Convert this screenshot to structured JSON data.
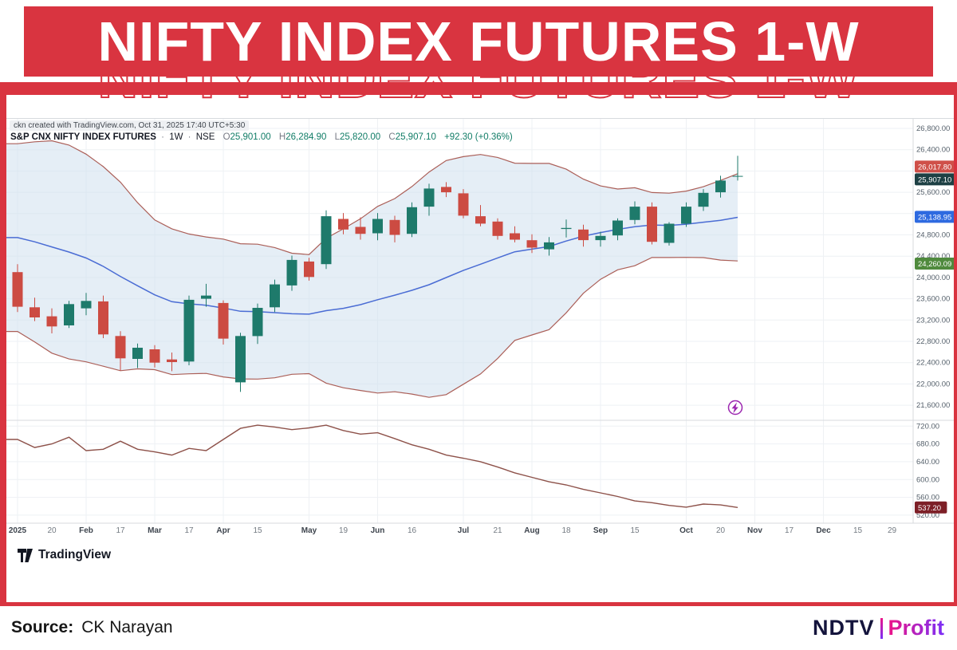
{
  "banner": {
    "title": "NIFTY INDEX FUTURES 1-W",
    "bg_color": "#d93440"
  },
  "chart_header": {
    "watermark": "ckn created with TradingView.com, Oct 31, 2025 17:40 UTC+5:30",
    "symbol": "S&P CNX NIFTY INDEX FUTURES",
    "separator": "·",
    "interval": "1W",
    "exchange": "NSE",
    "ohlc": [
      {
        "k": "O",
        "v": "25,901.00"
      },
      {
        "k": "H",
        "v": "26,284.90"
      },
      {
        "k": "L",
        "v": "25,820.00"
      },
      {
        "k": "C",
        "v": "25,907.10"
      }
    ],
    "change": "+92.30 (+0.36%)"
  },
  "logo": {
    "text": "TradingView"
  },
  "footer": {
    "source_label": "Source:",
    "source_name": "CK Narayan",
    "brand_ndtv": "NDTV",
    "brand_profit": "Profit"
  },
  "chart_data": {
    "type": "candlestick",
    "title": "S&P CNX NIFTY INDEX FUTURES · 1W · NSE — weekly candles with Bollinger Bands (20,2) and lower volatility indicator",
    "colors": {
      "up": "#1e7a6b",
      "down": "#cc4b42",
      "bb_fill": "#cfe0ef",
      "bb_line": "#ab5f58",
      "basis": "#4a6cd4",
      "indicator": "#8d5149"
    },
    "y_axis_main": {
      "ylim": [
        21257,
        26980
      ],
      "ticks": [
        {
          "p": 26800,
          "l": "26,800.00"
        },
        {
          "p": 26400,
          "l": "26,400.00"
        },
        {
          "p": 26000,
          "l": ""
        },
        {
          "p": 25600,
          "l": "25,600.00"
        },
        {
          "p": 25200,
          "l": ""
        },
        {
          "p": 24800,
          "l": "24,800.00"
        },
        {
          "p": 24400,
          "l": "24,400.00"
        },
        {
          "p": 24000,
          "l": "24,000.00"
        },
        {
          "p": 23600,
          "l": "23,600.00"
        },
        {
          "p": 23200,
          "l": "23,200.00"
        },
        {
          "p": 22800,
          "l": "22,800.00"
        },
        {
          "p": 22400,
          "l": "22,400.00"
        },
        {
          "p": 22000,
          "l": "22,000.00"
        },
        {
          "p": 21600,
          "l": "21,600.00"
        }
      ]
    },
    "y_axis_lower": {
      "ylim": [
        502,
        733
      ],
      "ticks": [
        {
          "v": 720,
          "l": "720.00"
        },
        {
          "v": 680,
          "l": "680.00"
        },
        {
          "v": 640,
          "l": "640.00"
        },
        {
          "v": 600,
          "l": "600.00"
        },
        {
          "v": 560,
          "l": "560.00"
        },
        {
          "v": 520,
          "l": "520.00"
        }
      ]
    },
    "x_axis": {
      "labels": [
        {
          "i": 0,
          "t": "2025",
          "major": true
        },
        {
          "i": 2,
          "t": "20",
          "major": false
        },
        {
          "i": 4,
          "t": "Feb",
          "major": true
        },
        {
          "i": 6,
          "t": "17",
          "major": false
        },
        {
          "i": 8,
          "t": "Mar",
          "major": true
        },
        {
          "i": 10,
          "t": "17",
          "major": false
        },
        {
          "i": 12,
          "t": "Apr",
          "major": true
        },
        {
          "i": 14,
          "t": "15",
          "major": false
        },
        {
          "i": 17,
          "t": "May",
          "major": true
        },
        {
          "i": 19,
          "t": "19",
          "major": false
        },
        {
          "i": 21,
          "t": "Jun",
          "major": true
        },
        {
          "i": 23,
          "t": "16",
          "major": false
        },
        {
          "i": 26,
          "t": "Jul",
          "major": true
        },
        {
          "i": 28,
          "t": "21",
          "major": false
        },
        {
          "i": 30,
          "t": "Aug",
          "major": true
        },
        {
          "i": 32,
          "t": "18",
          "major": false
        },
        {
          "i": 34,
          "t": "Sep",
          "major": true
        },
        {
          "i": 36,
          "t": "15",
          "major": false
        },
        {
          "i": 39,
          "t": "Oct",
          "major": true
        },
        {
          "i": 41,
          "t": "20",
          "major": false
        },
        {
          "i": 43,
          "t": "Nov",
          "major": true
        },
        {
          "i": 45,
          "t": "17",
          "major": false
        },
        {
          "i": 47,
          "t": "Dec",
          "major": true
        },
        {
          "i": 49,
          "t": "15",
          "major": false
        },
        {
          "i": 51,
          "t": "29",
          "major": false
        }
      ]
    },
    "price_labels": [
      {
        "name": "bb-upper",
        "price": 26017.8,
        "label": "26,017.80",
        "color": "#cf5049"
      },
      {
        "name": "last-price",
        "price": 25907.1,
        "label": "25,907.10",
        "color": "#1d4044"
      },
      {
        "name": "bb-basis",
        "price": 25138.95,
        "label": "25,138.95",
        "color": "#2e6ae0"
      },
      {
        "name": "bb-lower",
        "price": 24260.09,
        "label": "24,260.09",
        "color": "#4f8a3d"
      }
    ],
    "lower_label": {
      "value": 537.2,
      "label": "537.20",
      "color": "#7d1f27"
    },
    "pre_closes": [
      24850,
      25000,
      25400,
      25800,
      26100,
      26250,
      26180,
      25800,
      25000,
      24400,
      24150,
      23900,
      24150,
      23550,
      24250,
      24750,
      24150,
      23850,
      24005
    ],
    "candles": [
      [
        24100,
        24250,
        23350,
        23450
      ],
      [
        23440,
        23620,
        23180,
        23250
      ],
      [
        23270,
        23420,
        22950,
        23080
      ],
      [
        23100,
        23560,
        23050,
        23500
      ],
      [
        23420,
        23710,
        23290,
        23560
      ],
      [
        23550,
        23660,
        22860,
        22930
      ],
      [
        22900,
        22990,
        22250,
        22480
      ],
      [
        22470,
        22760,
        22300,
        22680
      ],
      [
        22650,
        22730,
        22310,
        22400
      ],
      [
        22460,
        22590,
        22240,
        22410
      ],
      [
        22420,
        23660,
        22350,
        23580
      ],
      [
        23600,
        23880,
        23450,
        23660
      ],
      [
        23520,
        23570,
        22740,
        22850
      ],
      [
        22030,
        22960,
        21850,
        22900
      ],
      [
        22900,
        23510,
        22750,
        23430
      ],
      [
        23440,
        23960,
        23350,
        23870
      ],
      [
        23850,
        24410,
        23750,
        24330
      ],
      [
        24300,
        24370,
        23940,
        24010
      ],
      [
        24250,
        25260,
        24160,
        25150
      ],
      [
        25100,
        25210,
        24810,
        24900
      ],
      [
        24950,
        25130,
        24710,
        24820
      ],
      [
        24830,
        25210,
        24700,
        25100
      ],
      [
        25080,
        25160,
        24660,
        24800
      ],
      [
        24820,
        25410,
        24760,
        25320
      ],
      [
        25330,
        25760,
        25160,
        25670
      ],
      [
        25700,
        25790,
        25510,
        25600
      ],
      [
        25580,
        25660,
        25110,
        25160
      ],
      [
        25150,
        25360,
        24960,
        25010
      ],
      [
        25050,
        25110,
        24710,
        24780
      ],
      [
        24830,
        24960,
        24660,
        24710
      ],
      [
        24700,
        24810,
        24460,
        24560
      ],
      [
        24530,
        24760,
        24410,
        24660
      ],
      [
        24910,
        25090,
        24750,
        24930
      ],
      [
        24900,
        24990,
        24580,
        24700
      ],
      [
        24700,
        24860,
        24580,
        24780
      ],
      [
        24790,
        25110,
        24700,
        25070
      ],
      [
        25080,
        25430,
        25000,
        25330
      ],
      [
        25330,
        25410,
        24620,
        24670
      ],
      [
        24650,
        25040,
        24600,
        25010
      ],
      [
        25010,
        25410,
        24950,
        25330
      ],
      [
        25330,
        25660,
        25250,
        25590
      ],
      [
        25600,
        25910,
        25500,
        25820
      ],
      [
        25901,
        26284.9,
        25820,
        25907.1
      ]
    ],
    "indicator_values": [
      690,
      672,
      680,
      695,
      665,
      668,
      686,
      668,
      662,
      655,
      670,
      665,
      690,
      715,
      722,
      718,
      712,
      716,
      722,
      710,
      702,
      705,
      692,
      678,
      668,
      655,
      648,
      640,
      628,
      615,
      605,
      595,
      588,
      578,
      570,
      562,
      552,
      548,
      542,
      538,
      545,
      543,
      537.2
    ]
  }
}
